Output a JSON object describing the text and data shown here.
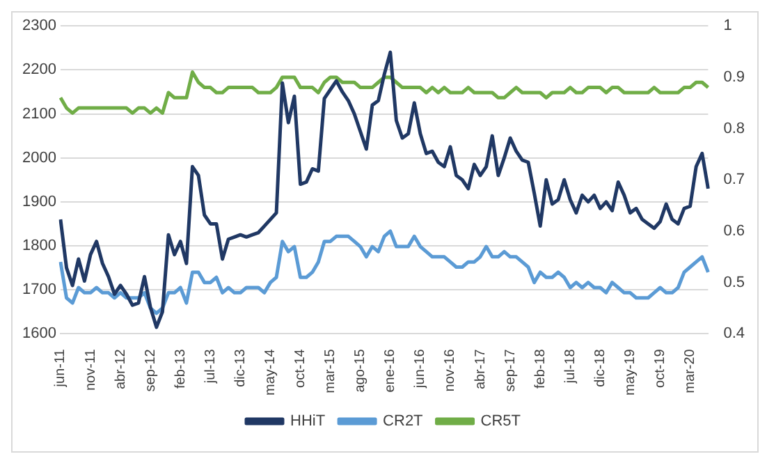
{
  "chart_data": {
    "type": "line",
    "categories": [
      "jun-11",
      null,
      null,
      null,
      null,
      "nov-11",
      null,
      null,
      null,
      null,
      "abr-12",
      null,
      null,
      null,
      null,
      "sep-12",
      null,
      null,
      null,
      null,
      "feb-13",
      null,
      null,
      null,
      null,
      "jul-13",
      null,
      null,
      null,
      null,
      "dic-13",
      null,
      null,
      null,
      null,
      "may-14",
      null,
      null,
      null,
      null,
      "oct-14",
      null,
      null,
      null,
      null,
      "mar-15",
      null,
      null,
      null,
      null,
      "ago-15",
      null,
      null,
      null,
      null,
      "ene-16",
      null,
      null,
      null,
      null,
      "jun-16",
      null,
      null,
      null,
      null,
      "nov-16",
      null,
      null,
      null,
      null,
      "abr-17",
      null,
      null,
      null,
      null,
      "sep-17",
      null,
      null,
      null,
      null,
      "feb-18",
      null,
      null,
      null,
      null,
      "jul-18",
      null,
      null,
      null,
      null,
      "dic-18",
      null,
      null,
      null,
      null,
      "may-19",
      null,
      null,
      null,
      null,
      "oct-19",
      null,
      null,
      null,
      null,
      "mar-20",
      null,
      null,
      null
    ],
    "series": [
      {
        "name": "HHiT",
        "color": "#203864",
        "values": [
          1860,
          1750,
          1710,
          1770,
          1720,
          1780,
          1810,
          1760,
          1730,
          1690,
          1710,
          1690,
          1665,
          1670,
          1730,
          1660,
          1615,
          1650,
          1825,
          1780,
          1810,
          1760,
          1980,
          1960,
          1870,
          1850,
          1850,
          1770,
          1815,
          1820,
          1825,
          1820,
          1825,
          1830,
          1845,
          1860,
          1875,
          2170,
          2080,
          2140,
          1940,
          1945,
          1975,
          1970,
          2135,
          2155,
          2175,
          2150,
          2130,
          2100,
          2060,
          2020,
          2120,
          2130,
          2190,
          2240,
          2085,
          2045,
          2055,
          2125,
          2055,
          2010,
          2015,
          1990,
          1980,
          2025,
          1960,
          1950,
          1930,
          1985,
          1960,
          1980,
          2050,
          1960,
          2000,
          2045,
          2015,
          1995,
          1990,
          1920,
          1845,
          1950,
          1895,
          1905,
          1950,
          1905,
          1875,
          1915,
          1900,
          1915,
          1885,
          1900,
          1880,
          1945,
          1915,
          1875,
          1885,
          1860,
          1850,
          1840,
          1855,
          1895,
          1860,
          1850,
          1885,
          1890,
          1980,
          2010,
          1930
        ]
      },
      {
        "name": "CR2T",
        "color": "#5b9bd5",
        "axis": "y2",
        "values": [
          0.54,
          0.47,
          0.46,
          0.49,
          0.48,
          0.48,
          0.49,
          0.48,
          0.48,
          0.47,
          0.48,
          0.47,
          0.47,
          0.47,
          0.48,
          0.45,
          0.44,
          0.45,
          0.48,
          0.48,
          0.49,
          0.46,
          0.52,
          0.52,
          0.5,
          0.5,
          0.51,
          0.48,
          0.49,
          0.48,
          0.48,
          0.49,
          0.49,
          0.49,
          0.48,
          0.5,
          0.51,
          0.58,
          0.56,
          0.57,
          0.51,
          0.51,
          0.52,
          0.54,
          0.58,
          0.58,
          0.59,
          0.59,
          0.59,
          0.58,
          0.57,
          0.55,
          0.57,
          0.56,
          0.59,
          0.6,
          0.57,
          0.57,
          0.57,
          0.59,
          0.57,
          0.56,
          0.55,
          0.55,
          0.55,
          0.54,
          0.53,
          0.53,
          0.54,
          0.54,
          0.55,
          0.57,
          0.55,
          0.55,
          0.56,
          0.55,
          0.55,
          0.54,
          0.53,
          0.5,
          0.52,
          0.51,
          0.51,
          0.52,
          0.51,
          0.49,
          0.5,
          0.49,
          0.5,
          0.49,
          0.49,
          0.48,
          0.5,
          0.49,
          0.48,
          0.48,
          0.47,
          0.47,
          0.47,
          0.48,
          0.49,
          0.48,
          0.48,
          0.49,
          0.52,
          0.53,
          0.54,
          0.55,
          0.52
        ]
      },
      {
        "name": "CR5T",
        "color": "#70ad47",
        "axis": "y2",
        "values": [
          0.86,
          0.84,
          0.83,
          0.84,
          0.84,
          0.84,
          0.84,
          0.84,
          0.84,
          0.84,
          0.84,
          0.84,
          0.83,
          0.84,
          0.84,
          0.83,
          0.84,
          0.83,
          0.87,
          0.86,
          0.86,
          0.86,
          0.91,
          0.89,
          0.88,
          0.88,
          0.87,
          0.87,
          0.88,
          0.88,
          0.88,
          0.88,
          0.88,
          0.87,
          0.87,
          0.87,
          0.88,
          0.9,
          0.9,
          0.9,
          0.88,
          0.88,
          0.88,
          0.87,
          0.89,
          0.9,
          0.9,
          0.89,
          0.89,
          0.89,
          0.88,
          0.88,
          0.88,
          0.89,
          0.9,
          0.9,
          0.89,
          0.88,
          0.88,
          0.88,
          0.88,
          0.87,
          0.88,
          0.87,
          0.88,
          0.87,
          0.87,
          0.87,
          0.88,
          0.87,
          0.87,
          0.87,
          0.87,
          0.86,
          0.86,
          0.87,
          0.88,
          0.87,
          0.87,
          0.87,
          0.87,
          0.86,
          0.87,
          0.87,
          0.87,
          0.88,
          0.87,
          0.87,
          0.88,
          0.88,
          0.88,
          0.87,
          0.88,
          0.88,
          0.87,
          0.87,
          0.87,
          0.87,
          0.87,
          0.88,
          0.87,
          0.87,
          0.87,
          0.87,
          0.88,
          0.88,
          0.89,
          0.89,
          0.88
        ]
      }
    ],
    "ylim": [
      1600,
      2300
    ],
    "yticks": [
      1600,
      1700,
      1800,
      1900,
      2000,
      2100,
      2200,
      2300
    ],
    "y2lim": [
      0.4,
      1
    ],
    "y2ticks": [
      0.4,
      0.5,
      0.6,
      0.7,
      0.8,
      0.9,
      1
    ],
    "grid": "y",
    "legend": "bottom",
    "marker": "none",
    "line_style": "solid"
  }
}
